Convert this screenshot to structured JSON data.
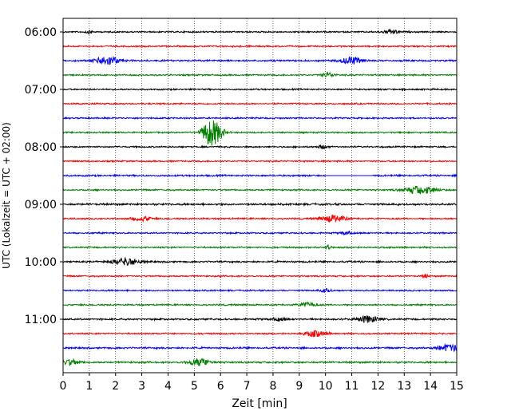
{
  "chart_data": {
    "type": "line",
    "xlabel": "Zeit  [min]",
    "ylabel": "UTC (Lokalzeit = UTC + 02:00)",
    "xlim": [
      0,
      15
    ],
    "x_ticks": [
      0,
      1,
      2,
      3,
      4,
      5,
      6,
      7,
      8,
      9,
      10,
      11,
      12,
      13,
      14,
      15
    ],
    "y_tick_labels": [
      "06:00",
      "07:00",
      "08:00",
      "09:00",
      "10:00",
      "11:00"
    ],
    "grid": true,
    "trace_colors": [
      "#000000",
      "#ff0000",
      "#0000ff",
      "#008000"
    ],
    "traces": [
      {
        "start": "06:00",
        "color": "#000000",
        "noise": 0.35,
        "events": [
          {
            "t": 1.0,
            "amp": 0.8,
            "w": 0.15
          },
          {
            "t": 12.5,
            "amp": 1.1,
            "w": 0.3
          }
        ]
      },
      {
        "start": "06:15",
        "color": "#ff0000",
        "noise": 0.35,
        "events": []
      },
      {
        "start": "06:30",
        "color": "#0000ff",
        "noise": 0.4,
        "events": [
          {
            "t": 1.7,
            "amp": 2.4,
            "w": 0.45
          },
          {
            "t": 11.0,
            "amp": 2.0,
            "w": 0.4
          }
        ]
      },
      {
        "start": "06:45",
        "color": "#008000",
        "noise": 0.35,
        "events": [
          {
            "t": 10.1,
            "amp": 1.2,
            "w": 0.25
          }
        ]
      },
      {
        "start": "07:00",
        "color": "#000000",
        "noise": 0.35,
        "events": []
      },
      {
        "start": "07:15",
        "color": "#ff0000",
        "noise": 0.35,
        "events": []
      },
      {
        "start": "07:30",
        "color": "#0000ff",
        "noise": 0.35,
        "events": []
      },
      {
        "start": "07:45",
        "color": "#008000",
        "noise": 0.35,
        "events": [
          {
            "t": 5.5,
            "amp": 4.5,
            "w": 0.25
          },
          {
            "t": 5.8,
            "amp": 5.5,
            "w": 0.3
          }
        ]
      },
      {
        "start": "08:00",
        "color": "#000000",
        "noise": 0.35,
        "events": [
          {
            "t": 9.9,
            "amp": 0.9,
            "w": 0.2
          }
        ]
      },
      {
        "start": "08:15",
        "color": "#ff0000",
        "noise": 0.35,
        "events": []
      },
      {
        "start": "08:30",
        "color": "#0000ff",
        "noise": 0.4,
        "events": [],
        "flat": [
          10.0,
          11.8
        ]
      },
      {
        "start": "08:45",
        "color": "#008000",
        "noise": 0.35,
        "events": [
          {
            "t": 13.6,
            "amp": 2.2,
            "w": 0.6
          }
        ]
      },
      {
        "start": "09:00",
        "color": "#000000",
        "noise": 0.45,
        "events": []
      },
      {
        "start": "09:15",
        "color": "#ff0000",
        "noise": 0.35,
        "events": [
          {
            "t": 3.0,
            "amp": 1.2,
            "w": 0.35
          },
          {
            "t": 10.3,
            "amp": 1.8,
            "w": 0.45
          }
        ]
      },
      {
        "start": "09:30",
        "color": "#0000ff",
        "noise": 0.35,
        "events": [
          {
            "t": 10.8,
            "amp": 0.9,
            "w": 0.2
          }
        ]
      },
      {
        "start": "09:45",
        "color": "#008000",
        "noise": 0.35,
        "events": [
          {
            "t": 10.1,
            "amp": 1.3,
            "w": 0.1
          }
        ]
      },
      {
        "start": "10:00",
        "color": "#000000",
        "noise": 0.4,
        "events": [
          {
            "t": 2.4,
            "amp": 2.0,
            "w": 0.5
          }
        ]
      },
      {
        "start": "10:15",
        "color": "#ff0000",
        "noise": 0.35,
        "events": [
          {
            "t": 13.8,
            "amp": 1.0,
            "w": 0.1
          }
        ]
      },
      {
        "start": "10:30",
        "color": "#0000ff",
        "noise": 0.35,
        "events": [
          {
            "t": 10.0,
            "amp": 0.9,
            "w": 0.2
          }
        ]
      },
      {
        "start": "10:45",
        "color": "#008000",
        "noise": 0.35,
        "events": [
          {
            "t": 9.3,
            "amp": 1.3,
            "w": 0.3
          }
        ]
      },
      {
        "start": "11:00",
        "color": "#000000",
        "noise": 0.4,
        "events": [
          {
            "t": 11.6,
            "amp": 1.8,
            "w": 0.4
          },
          {
            "t": 8.2,
            "amp": 0.7,
            "w": 0.3
          }
        ]
      },
      {
        "start": "11:15",
        "color": "#ff0000",
        "noise": 0.35,
        "events": [
          {
            "t": 9.6,
            "amp": 1.6,
            "w": 0.4
          }
        ]
      },
      {
        "start": "11:30",
        "color": "#0000ff",
        "noise": 0.4,
        "events": [
          {
            "t": 14.7,
            "amp": 2.0,
            "w": 0.4
          }
        ]
      },
      {
        "start": "11:45",
        "color": "#008000",
        "noise": 0.4,
        "events": [
          {
            "t": 0.3,
            "amp": 1.5,
            "w": 0.3
          },
          {
            "t": 5.2,
            "amp": 2.0,
            "w": 0.4
          }
        ]
      }
    ]
  }
}
